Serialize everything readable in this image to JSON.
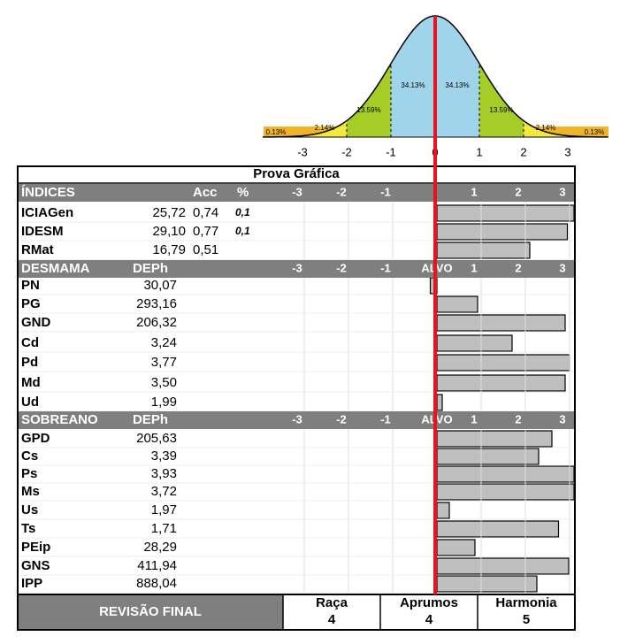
{
  "curve": {
    "percent_labels": [
      "0.13%",
      "2.14%",
      "13.59%",
      "34.13%",
      "34.13%",
      "13.59%",
      "2.14%",
      "0.13%"
    ],
    "axis_labels": [
      -3,
      -2,
      -1,
      0,
      1,
      2,
      3
    ]
  },
  "title": "Prova Gráfica",
  "indices": {
    "header": [
      "ÍNDICES",
      "Acc",
      "%"
    ],
    "scale": [
      -3,
      -2,
      -1,
      1,
      2,
      3
    ],
    "rows": [
      {
        "name": "ICIAGen",
        "value": "25,72",
        "acc": "0,74",
        "pct": "0,1",
        "bar": 3.1
      },
      {
        "name": "IDESM",
        "value": "29,10",
        "acc": "0,77",
        "pct": "0,1",
        "bar": 2.95
      },
      {
        "name": "RMat",
        "value": "16,79",
        "acc": "0,51",
        "bar": 2.1
      }
    ]
  },
  "desmama": {
    "header": [
      "DESMAMA",
      "DEPh"
    ],
    "scale": [
      -3,
      -2,
      -1,
      1,
      2,
      3
    ],
    "center": "ALVO",
    "rows": [
      {
        "name": "PN",
        "value": "30,07",
        "bar": -0.15
      },
      {
        "name": "PG",
        "value": "293,16",
        "bar": 0.92
      },
      {
        "name": "GND",
        "value": "206,32",
        "bar": 2.9
      },
      {
        "name": "Cd",
        "value": "3,24",
        "bar": 1.7
      },
      {
        "name": "Pd",
        "value": "3,77",
        "bar": 3.0
      },
      {
        "name": "Md",
        "value": "3,50",
        "bar": 2.9
      },
      {
        "name": "Ud",
        "value": "1,99",
        "bar": 0.12
      }
    ]
  },
  "sobreano": {
    "header": [
      "SOBREANO",
      "DEPh"
    ],
    "scale": [
      -3,
      -2,
      -1,
      1,
      2,
      3
    ],
    "center": "ALVO",
    "rows": [
      {
        "name": "GPD",
        "value": "205,63",
        "bar": 2.6
      },
      {
        "name": "Cs",
        "value": "3,39",
        "bar": 2.3
      },
      {
        "name": "Ps",
        "value": "3,93",
        "bar": 3.1
      },
      {
        "name": "Ms",
        "value": "3,72",
        "bar": 3.1
      },
      {
        "name": "Us",
        "value": "1,97",
        "bar": 0.28
      },
      {
        "name": "Ts",
        "value": "1,71",
        "bar": 2.75
      },
      {
        "name": "PEip",
        "value": "28,29",
        "bar": 0.86
      },
      {
        "name": "GNS",
        "value": "411,94",
        "bar": 2.98
      },
      {
        "name": "IPP",
        "value": "888,04",
        "bar": 2.26
      }
    ]
  },
  "review": {
    "title": "REVISÃO FINAL",
    "items": [
      {
        "label": "Raça",
        "value": "4"
      },
      {
        "label": "Aprumos",
        "value": "4"
      },
      {
        "label": "Harmonia",
        "value": "5"
      }
    ]
  }
}
